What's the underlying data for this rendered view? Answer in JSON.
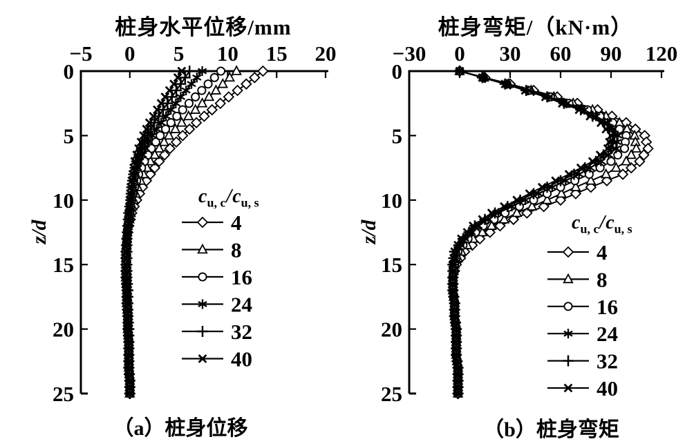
{
  "figure": {
    "background": "#ffffff",
    "ink": "#000000",
    "caption_a": "（a）桩身位移",
    "caption_b": "（b）桩身弯矩"
  },
  "legend": {
    "symbol": "c",
    "numerator_subscript": "u, c",
    "divider": "/",
    "denominator_subscript": "u, s",
    "entries": [
      "4",
      "8",
      "16",
      "24",
      "32",
      "40"
    ]
  },
  "chart_data": [
    {
      "id": "displacement",
      "type": "line",
      "title": "桩身水平位移/mm",
      "xlabel": "桩身水平位移/mm",
      "ylabel": "z/d",
      "legend_title": "cu,c/cu,s",
      "legend_position": "inside-right",
      "grid": false,
      "x_axis_position": "top",
      "y_axis_inverted": true,
      "xlim": [
        -5,
        20
      ],
      "ylim": [
        0,
        25
      ],
      "x_ticks": [
        -5,
        0,
        5,
        10,
        15,
        20
      ],
      "x_tick_labels": [
        "−5",
        "0",
        "5",
        "10",
        "15",
        "20"
      ],
      "y_ticks": [
        0,
        5,
        10,
        15,
        20,
        25
      ],
      "y_tick_labels": [
        "0",
        "5",
        "10",
        "15",
        "20",
        "25"
      ],
      "z": [
        0,
        1,
        2,
        3,
        4,
        5,
        6,
        7,
        8,
        9,
        10,
        11,
        12,
        13,
        14,
        15,
        16,
        17,
        18,
        19,
        20,
        21,
        22,
        23,
        24,
        25
      ],
      "series": [
        {
          "name": "4",
          "marker": "diamond",
          "values": [
            13.6,
            11.9,
            10.1,
            8.4,
            6.8,
            5.4,
            4.1,
            3.0,
            2.1,
            1.3,
            0.7,
            0.2,
            -0.1,
            -0.3,
            -0.4,
            -0.4,
            -0.4,
            -0.3,
            -0.3,
            -0.2,
            -0.2,
            -0.1,
            -0.1,
            -0.1,
            0.0,
            0.0
          ]
        },
        {
          "name": "8",
          "marker": "triangle",
          "values": [
            10.9,
            9.5,
            8.1,
            6.7,
            5.3,
            4.0,
            3.0,
            2.1,
            1.4,
            0.8,
            0.4,
            0.1,
            -0.2,
            -0.3,
            -0.4,
            -0.4,
            -0.4,
            -0.3,
            -0.3,
            -0.2,
            -0.2,
            -0.1,
            -0.1,
            -0.1,
            0.0,
            0.0
          ]
        },
        {
          "name": "16",
          "marker": "circle",
          "values": [
            9.3,
            8.0,
            6.7,
            5.4,
            4.2,
            3.1,
            2.2,
            1.5,
            0.9,
            0.5,
            0.2,
            0.0,
            -0.2,
            -0.3,
            -0.4,
            -0.4,
            -0.3,
            -0.3,
            -0.3,
            -0.2,
            -0.2,
            -0.1,
            -0.1,
            -0.1,
            0.0,
            0.0
          ]
        },
        {
          "name": "24",
          "marker": "asterisk",
          "values": [
            7.4,
            6.3,
            5.2,
            4.2,
            3.2,
            2.3,
            1.6,
            1.0,
            0.6,
            0.3,
            0.1,
            -0.1,
            -0.2,
            -0.3,
            -0.3,
            -0.3,
            -0.3,
            -0.3,
            -0.2,
            -0.2,
            -0.2,
            -0.1,
            -0.1,
            -0.1,
            0.0,
            0.0
          ]
        },
        {
          "name": "32",
          "marker": "plus",
          "values": [
            6.1,
            5.2,
            4.3,
            3.4,
            2.5,
            1.8,
            1.2,
            0.7,
            0.4,
            0.2,
            0.1,
            -0.1,
            -0.2,
            -0.3,
            -0.3,
            -0.3,
            -0.3,
            -0.2,
            -0.2,
            -0.2,
            -0.1,
            -0.1,
            -0.1,
            -0.1,
            0.0,
            0.0
          ]
        },
        {
          "name": "40",
          "marker": "x",
          "values": [
            5.3,
            4.5,
            3.6,
            2.8,
            2.0,
            1.4,
            0.9,
            0.5,
            0.3,
            0.1,
            0.0,
            -0.1,
            -0.2,
            -0.2,
            -0.3,
            -0.3,
            -0.2,
            -0.2,
            -0.2,
            -0.1,
            -0.1,
            -0.1,
            -0.1,
            0.0,
            0.0,
            0.0
          ]
        }
      ]
    },
    {
      "id": "moment",
      "type": "line",
      "title": "桩身弯矩/（kN·m）",
      "xlabel": "桩身弯矩/（kN·m）",
      "ylabel": "z/d",
      "legend_title": "cu,c/cu,s",
      "legend_position": "inside-right",
      "grid": false,
      "x_axis_position": "top",
      "y_axis_inverted": true,
      "xlim": [
        -30,
        120
      ],
      "ylim": [
        0,
        25
      ],
      "x_ticks": [
        -30,
        0,
        30,
        60,
        90,
        120
      ],
      "x_tick_labels": [
        "−30",
        "0",
        "30",
        "60",
        "90",
        "120"
      ],
      "y_ticks": [
        0,
        5,
        10,
        15,
        20,
        25
      ],
      "y_tick_labels": [
        "0",
        "5",
        "10",
        "15",
        "20",
        "25"
      ],
      "z": [
        0,
        1,
        2,
        3,
        4,
        5,
        6,
        7,
        8,
        9,
        10,
        11,
        12,
        13,
        14,
        15,
        16,
        17,
        18,
        19,
        20,
        21,
        22,
        23,
        24,
        25
      ],
      "series": [
        {
          "name": "4",
          "marker": "diamond",
          "values": [
            0,
            30,
            58,
            82,
            99,
            110,
            112,
            107,
            97,
            78,
            60,
            40,
            24,
            12,
            3,
            -2,
            -4,
            -4,
            -3,
            -3,
            -2,
            -2,
            -2,
            -1,
            -1,
            -1
          ]
        },
        {
          "name": "8",
          "marker": "triangle",
          "values": [
            0,
            29,
            56,
            79,
            95,
            104,
            105,
            99,
            87,
            69,
            52,
            34,
            19,
            8,
            1,
            -3,
            -4,
            -4,
            -3,
            -3,
            -2,
            -2,
            -2,
            -1,
            -1,
            -1
          ]
        },
        {
          "name": "16",
          "marker": "circle",
          "values": [
            0,
            28,
            54,
            76,
            91,
            99,
            98,
            90,
            77,
            60,
            44,
            27,
            14,
            5,
            -1,
            -3,
            -4,
            -4,
            -3,
            -3,
            -2,
            -2,
            -2,
            -1,
            -1,
            -1
          ]
        },
        {
          "name": "24",
          "marker": "asterisk",
          "values": [
            0,
            28,
            53,
            74,
            88,
            94,
            93,
            84,
            71,
            55,
            39,
            23,
            11,
            3,
            -2,
            -4,
            -4,
            -4,
            -3,
            -3,
            -2,
            -2,
            -2,
            -1,
            -1,
            -1
          ]
        },
        {
          "name": "32",
          "marker": "plus",
          "values": [
            0,
            27,
            52,
            72,
            86,
            92,
            90,
            81,
            68,
            52,
            36,
            21,
            9,
            2,
            -3,
            -4,
            -4,
            -4,
            -3,
            -3,
            -2,
            -2,
            -2,
            -1,
            -1,
            -1
          ]
        },
        {
          "name": "40",
          "marker": "x",
          "values": [
            0,
            27,
            51,
            71,
            84,
            90,
            88,
            79,
            65,
            49,
            34,
            19,
            8,
            1,
            -3,
            -4,
            -4,
            -4,
            -3,
            -3,
            -2,
            -2,
            -2,
            -1,
            -1,
            -1
          ]
        }
      ]
    }
  ]
}
